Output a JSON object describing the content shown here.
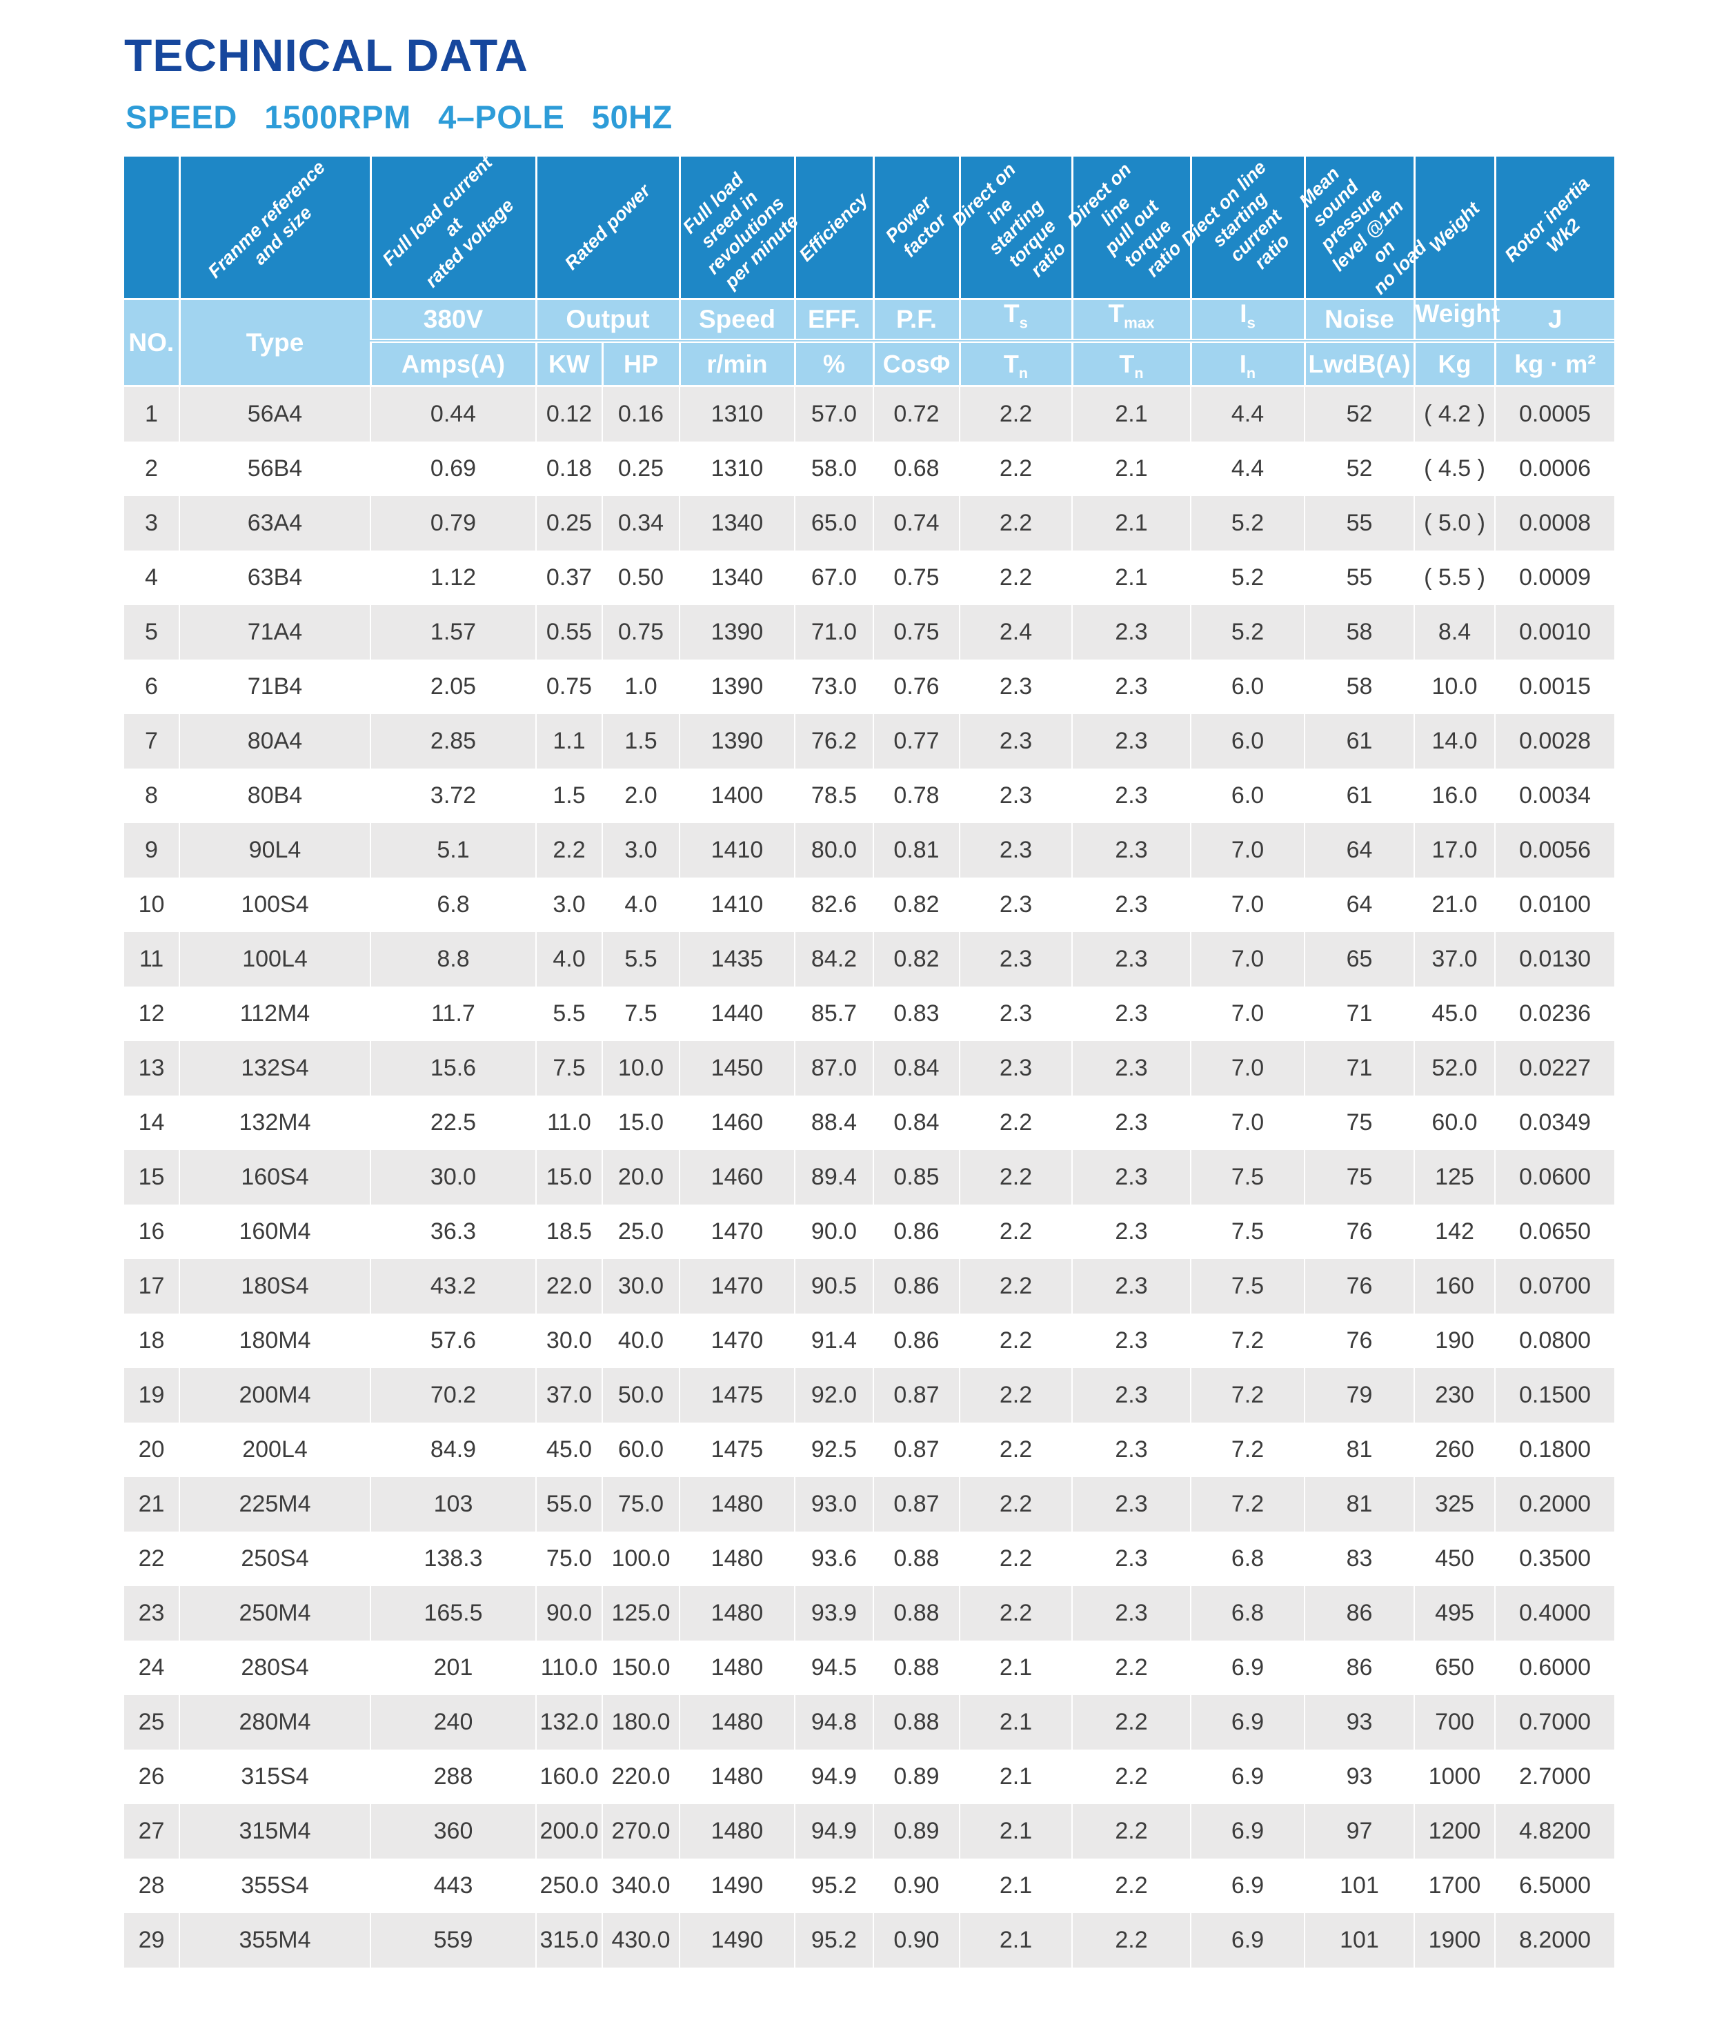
{
  "page": {
    "title": "TECHNICAL DATA",
    "subtitle": "SPEED 1500RPM 4–POLE 50HZ"
  },
  "table": {
    "col_keys": [
      "no",
      "type",
      "amps",
      "kw",
      "hp",
      "speed",
      "eff",
      "pf",
      "ts",
      "tmax",
      "is",
      "noise",
      "weight",
      "j"
    ],
    "rotated": {
      "type": "Franme reference\nand size",
      "amps": "Full load current at\nrated voltage",
      "output": "Rated power",
      "speed": "Full load sreed in\nrevolutions\nper minute",
      "eff": "Efficiency",
      "pf": "Power factor",
      "ts": "Direct on ine\nstarting torque\nratio",
      "tmax": "Direct on line\npull out torque\nratio",
      "is": "Diect on line\nstarting current\nratio",
      "noise": "Mean sound\npressure\nlevel @1m on\nno load",
      "weight": "Weight",
      "j": "Rotor inertia Wk2"
    },
    "group": {
      "no": "NO.",
      "type": "Type",
      "amps": "380V",
      "output": "Output",
      "speed": "Speed",
      "eff": "EFF.",
      "pf": "P.F.",
      "ts_main": "T",
      "ts_sub": "s",
      "tmax_main": "T",
      "tmax_sub": "max",
      "is_main": "I",
      "is_sub": "s",
      "noise": "Noise",
      "weight": "Weight",
      "j": "J"
    },
    "units": {
      "amps": "Amps(A)",
      "kw": "KW",
      "hp": "HP",
      "speed": "r/min",
      "eff": "%",
      "pf": "CosΦ",
      "tn1_main": "T",
      "tn1_sub": "n",
      "tn2_main": "T",
      "tn2_sub": "n",
      "in_main": "I",
      "in_sub": "n",
      "noise": "LwdB(A)",
      "weight": "Kg",
      "j": "kg · m²"
    },
    "rows": [
      [
        "1",
        "56A4",
        "0.44",
        "0.12",
        "0.16",
        "1310",
        "57.0",
        "0.72",
        "2.2",
        "2.1",
        "4.4",
        "52",
        "( 4.2 )",
        "0.0005"
      ],
      [
        "2",
        "56B4",
        "0.69",
        "0.18",
        "0.25",
        "1310",
        "58.0",
        "0.68",
        "2.2",
        "2.1",
        "4.4",
        "52",
        "( 4.5 )",
        "0.0006"
      ],
      [
        "3",
        "63A4",
        "0.79",
        "0.25",
        "0.34",
        "1340",
        "65.0",
        "0.74",
        "2.2",
        "2.1",
        "5.2",
        "55",
        "( 5.0 )",
        "0.0008"
      ],
      [
        "4",
        "63B4",
        "1.12",
        "0.37",
        "0.50",
        "1340",
        "67.0",
        "0.75",
        "2.2",
        "2.1",
        "5.2",
        "55",
        "( 5.5 )",
        "0.0009"
      ],
      [
        "5",
        "71A4",
        "1.57",
        "0.55",
        "0.75",
        "1390",
        "71.0",
        "0.75",
        "2.4",
        "2.3",
        "5.2",
        "58",
        "8.4",
        "0.0010"
      ],
      [
        "6",
        "71B4",
        "2.05",
        "0.75",
        "1.0",
        "1390",
        "73.0",
        "0.76",
        "2.3",
        "2.3",
        "6.0",
        "58",
        "10.0",
        "0.0015"
      ],
      [
        "7",
        "80A4",
        "2.85",
        "1.1",
        "1.5",
        "1390",
        "76.2",
        "0.77",
        "2.3",
        "2.3",
        "6.0",
        "61",
        "14.0",
        "0.0028"
      ],
      [
        "8",
        "80B4",
        "3.72",
        "1.5",
        "2.0",
        "1400",
        "78.5",
        "0.78",
        "2.3",
        "2.3",
        "6.0",
        "61",
        "16.0",
        "0.0034"
      ],
      [
        "9",
        "90L4",
        "5.1",
        "2.2",
        "3.0",
        "1410",
        "80.0",
        "0.81",
        "2.3",
        "2.3",
        "7.0",
        "64",
        "17.0",
        "0.0056"
      ],
      [
        "10",
        "100S4",
        "6.8",
        "3.0",
        "4.0",
        "1410",
        "82.6",
        "0.82",
        "2.3",
        "2.3",
        "7.0",
        "64",
        "21.0",
        "0.0100"
      ],
      [
        "11",
        "100L4",
        "8.8",
        "4.0",
        "5.5",
        "1435",
        "84.2",
        "0.82",
        "2.3",
        "2.3",
        "7.0",
        "65",
        "37.0",
        "0.0130"
      ],
      [
        "12",
        "112M4",
        "11.7",
        "5.5",
        "7.5",
        "1440",
        "85.7",
        "0.83",
        "2.3",
        "2.3",
        "7.0",
        "71",
        "45.0",
        "0.0236"
      ],
      [
        "13",
        "132S4",
        "15.6",
        "7.5",
        "10.0",
        "1450",
        "87.0",
        "0.84",
        "2.3",
        "2.3",
        "7.0",
        "71",
        "52.0",
        "0.0227"
      ],
      [
        "14",
        "132M4",
        "22.5",
        "11.0",
        "15.0",
        "1460",
        "88.4",
        "0.84",
        "2.2",
        "2.3",
        "7.0",
        "75",
        "60.0",
        "0.0349"
      ],
      [
        "15",
        "160S4",
        "30.0",
        "15.0",
        "20.0",
        "1460",
        "89.4",
        "0.85",
        "2.2",
        "2.3",
        "7.5",
        "75",
        "125",
        "0.0600"
      ],
      [
        "16",
        "160M4",
        "36.3",
        "18.5",
        "25.0",
        "1470",
        "90.0",
        "0.86",
        "2.2",
        "2.3",
        "7.5",
        "76",
        "142",
        "0.0650"
      ],
      [
        "17",
        "180S4",
        "43.2",
        "22.0",
        "30.0",
        "1470",
        "90.5",
        "0.86",
        "2.2",
        "2.3",
        "7.5",
        "76",
        "160",
        "0.0700"
      ],
      [
        "18",
        "180M4",
        "57.6",
        "30.0",
        "40.0",
        "1470",
        "91.4",
        "0.86",
        "2.2",
        "2.3",
        "7.2",
        "76",
        "190",
        "0.0800"
      ],
      [
        "19",
        "200M4",
        "70.2",
        "37.0",
        "50.0",
        "1475",
        "92.0",
        "0.87",
        "2.2",
        "2.3",
        "7.2",
        "79",
        "230",
        "0.1500"
      ],
      [
        "20",
        "200L4",
        "84.9",
        "45.0",
        "60.0",
        "1475",
        "92.5",
        "0.87",
        "2.2",
        "2.3",
        "7.2",
        "81",
        "260",
        "0.1800"
      ],
      [
        "21",
        "225M4",
        "103",
        "55.0",
        "75.0",
        "1480",
        "93.0",
        "0.87",
        "2.2",
        "2.3",
        "7.2",
        "81",
        "325",
        "0.2000"
      ],
      [
        "22",
        "250S4",
        "138.3",
        "75.0",
        "100.0",
        "1480",
        "93.6",
        "0.88",
        "2.2",
        "2.3",
        "6.8",
        "83",
        "450",
        "0.3500"
      ],
      [
        "23",
        "250M4",
        "165.5",
        "90.0",
        "125.0",
        "1480",
        "93.9",
        "0.88",
        "2.2",
        "2.3",
        "6.8",
        "86",
        "495",
        "0.4000"
      ],
      [
        "24",
        "280S4",
        "201",
        "110.0",
        "150.0",
        "1480",
        "94.5",
        "0.88",
        "2.1",
        "2.2",
        "6.9",
        "86",
        "650",
        "0.6000"
      ],
      [
        "25",
        "280M4",
        "240",
        "132.0",
        "180.0",
        "1480",
        "94.8",
        "0.88",
        "2.1",
        "2.2",
        "6.9",
        "93",
        "700",
        "0.7000"
      ],
      [
        "26",
        "315S4",
        "288",
        "160.0",
        "220.0",
        "1480",
        "94.9",
        "0.89",
        "2.1",
        "2.2",
        "6.9",
        "93",
        "1000",
        "2.7000"
      ],
      [
        "27",
        "315M4",
        "360",
        "200.0",
        "270.0",
        "1480",
        "94.9",
        "0.89",
        "2.1",
        "2.2",
        "6.9",
        "97",
        "1200",
        "4.8200"
      ],
      [
        "28",
        "355S4",
        "443",
        "250.0",
        "340.0",
        "1490",
        "95.2",
        "0.90",
        "2.1",
        "2.2",
        "6.9",
        "101",
        "1700",
        "6.5000"
      ],
      [
        "29",
        "355M4",
        "559",
        "315.0",
        "430.0",
        "1490",
        "95.2",
        "0.90",
        "2.1",
        "2.2",
        "6.9",
        "101",
        "1900",
        "8.2000"
      ]
    ],
    "colors": {
      "header_dark_blue": "#1e87c6",
      "header_light_blue": "#a1d4f0",
      "title_navy": "#16479d",
      "subtitle_blue": "#2d9cd8",
      "row_gray": "#eae9e9",
      "body_text": "#3c3c3c"
    }
  }
}
